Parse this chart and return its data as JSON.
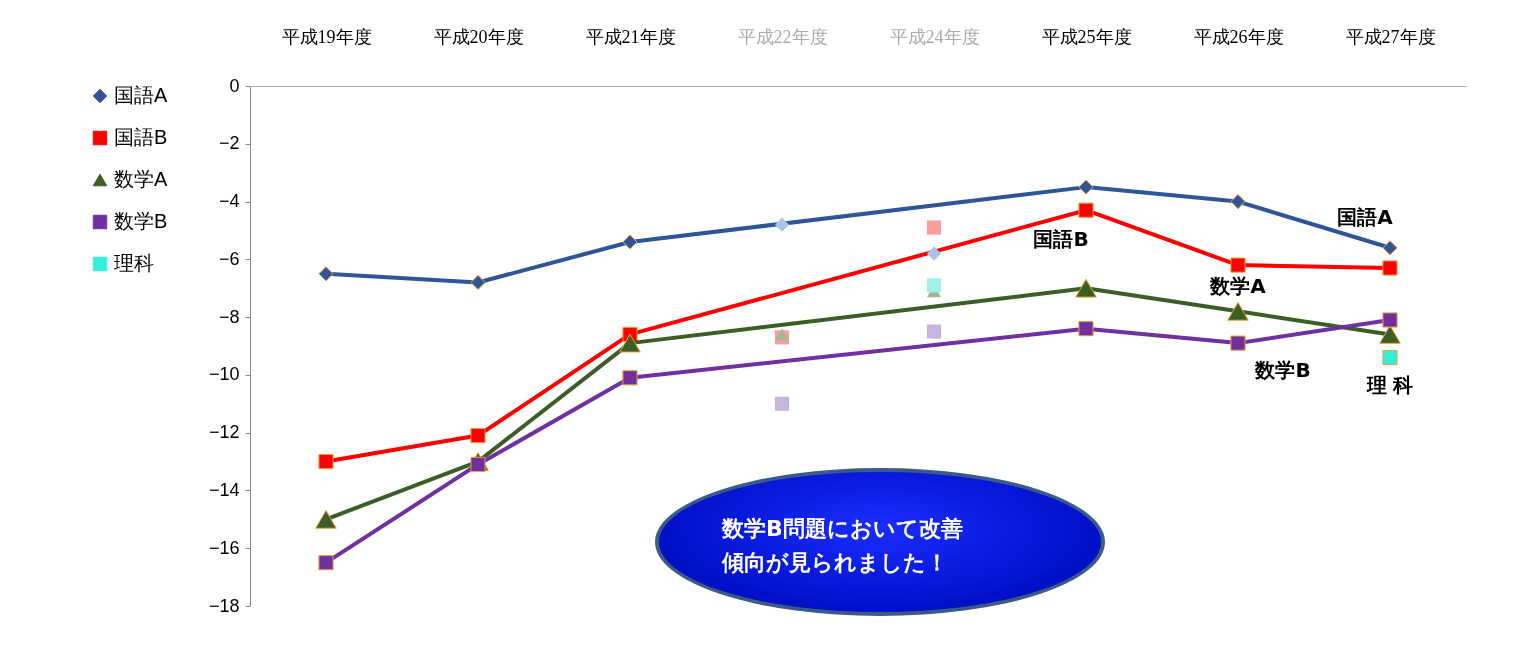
{
  "chart_data": {
    "type": "line",
    "categories": [
      "平成19年度",
      "平成20年度",
      "平成21年度",
      "平成22年度",
      "平成24年度",
      "平成25年度",
      "平成26年度",
      "平成27年度"
    ],
    "ylim": [
      -18,
      0
    ],
    "yticks": [
      0,
      -2,
      -4,
      -6,
      -8,
      -10,
      -12,
      -14,
      -16,
      -18
    ],
    "grid": false,
    "legend": "left",
    "series": [
      {
        "name": "国語A",
        "color": "#2e5597",
        "marker": "diamond",
        "values": [
          -6.5,
          -6.8,
          -5.4,
          null,
          null,
          -3.5,
          -4.0,
          -5.6
        ]
      },
      {
        "name": "国語B",
        "color": "#ff0000",
        "marker": "square",
        "values": [
          -13,
          -12.1,
          -8.6,
          null,
          null,
          -4.3,
          -6.2,
          -6.3
        ]
      },
      {
        "name": "数学A",
        "color": "#3b5e27",
        "marker": "triangle",
        "values": [
          -15,
          -13,
          -8.9,
          null,
          null,
          -7.0,
          -7.8,
          -8.6
        ]
      },
      {
        "name": "数学B",
        "color": "#7030a0",
        "marker": "square",
        "values": [
          -16.5,
          -13.1,
          -10.1,
          null,
          null,
          -8.4,
          -8.9,
          -8.1
        ]
      },
      {
        "name": "理科",
        "type": "scatter",
        "color": "#33eedd",
        "marker": "square",
        "values": [
          null,
          null,
          null,
          null,
          null,
          null,
          null,
          -9.4
        ]
      },
      {
        "type": "scatter",
        "color": "#a9c4e6",
        "marker": "diamond",
        "x": [
          "平成22年度",
          "平成24年度"
        ],
        "values": [
          -4.8,
          -5.8
        ]
      },
      {
        "type": "scatter",
        "color": "#ff9b9b",
        "marker": "square",
        "x": [
          "平成22年度",
          "平成24年度"
        ],
        "values": [
          -8.7,
          -4.9
        ]
      },
      {
        "type": "scatter",
        "color": "#a6b49c",
        "marker": "triangle",
        "x": [
          "平成22年度",
          "平成24年度"
        ],
        "values": [
          -8.6,
          -7.1
        ]
      },
      {
        "type": "scatter",
        "color": "#c8b4dc",
        "marker": "square",
        "x": [
          "平成22年度",
          "平成24年度"
        ],
        "values": [
          -11.0,
          -8.5
        ]
      },
      {
        "type": "scatter",
        "color": "#a0f0e8",
        "marker": "square",
        "x": [
          "平成24年度"
        ],
        "values": [
          -6.9
        ]
      }
    ],
    "annotations": [
      {
        "text": "国語A",
        "x": "平成27年度",
        "y": -5.6
      },
      {
        "text": "国語B",
        "x": "平成25年度",
        "y": -4.3
      },
      {
        "text": "数学A",
        "x": "平成26年度",
        "y": -7.8
      },
      {
        "text": "数学B",
        "x": "平成26年度",
        "y": -8.9
      },
      {
        "text": "理 科",
        "x": "平成27年度",
        "y": -9.4
      },
      "数学B問題において改善傾向が見られました！"
    ]
  }
}
